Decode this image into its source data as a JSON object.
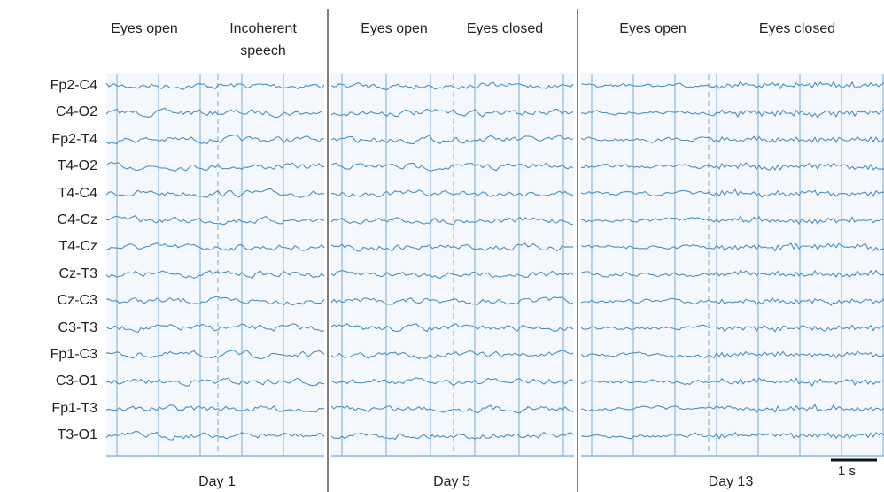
{
  "channels": [
    "Fp2-C4",
    "C4-O2",
    "Fp2-T4",
    "T4-O2",
    "T4-C4",
    "C4-Cz",
    "T4-Cz",
    "Cz-T3",
    "Cz-C3",
    "C3-T3",
    "Fp1-C3",
    "C3-O1",
    "Fp1-T3",
    "T3-O1"
  ],
  "panels": [
    {
      "headers": [
        "Eyes open",
        "Incoherent speech"
      ],
      "day": "Day 1"
    },
    {
      "headers": [
        "Eyes open",
        "Eyes closed"
      ],
      "day": "Day 5"
    },
    {
      "headers": [
        "Eyes open",
        "Eyes closed"
      ],
      "day": "Day 13"
    }
  ],
  "scale_bar": "1 s"
}
